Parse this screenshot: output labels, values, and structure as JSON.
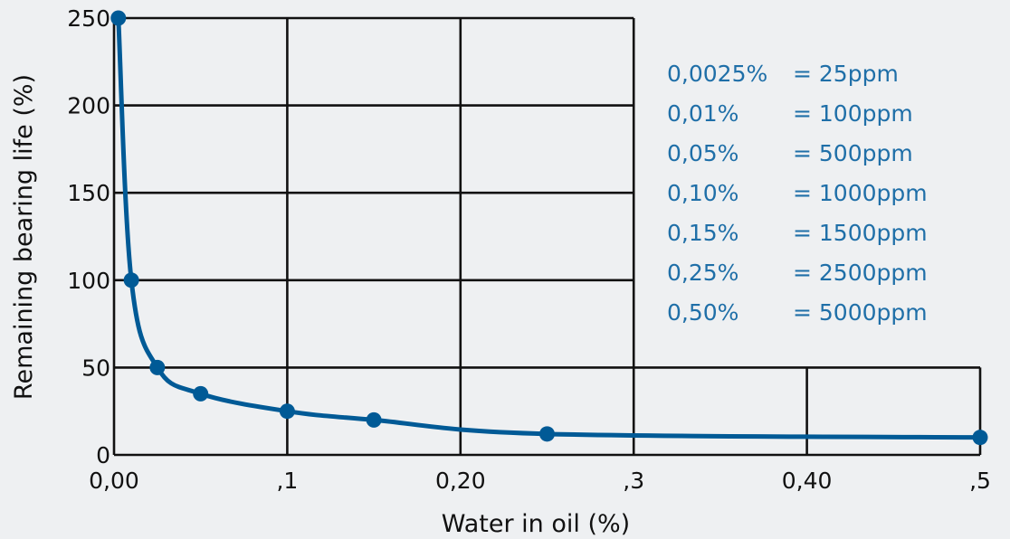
{
  "chart_data": {
    "type": "line",
    "title": "",
    "xlabel": "Water in oil (%)",
    "ylabel": "Remaining bearing life (%)",
    "xlim": [
      0,
      0.5
    ],
    "ylim": [
      0,
      250
    ],
    "x_ticks": [
      {
        "value": 0,
        "label": "0,00"
      },
      {
        "value": 0.1,
        "label": ",1"
      },
      {
        "value": 0.2,
        "label": "0,20"
      },
      {
        "value": 0.3,
        "label": ",3"
      },
      {
        "value": 0.4,
        "label": "0,40"
      },
      {
        "value": 0.5,
        "label": ",5"
      }
    ],
    "y_ticks": [
      {
        "value": 0,
        "label": "0"
      },
      {
        "value": 50,
        "label": "50"
      },
      {
        "value": 100,
        "label": "100"
      },
      {
        "value": 150,
        "label": "150"
      },
      {
        "value": 200,
        "label": "200"
      },
      {
        "value": 250,
        "label": "250"
      }
    ],
    "grid": true,
    "series": [
      {
        "color": "#005a96",
        "marker": "circle",
        "x": [
          0.0025,
          0.01,
          0.025,
          0.05,
          0.1,
          0.15,
          0.25,
          0.5
        ],
        "y": [
          250,
          100,
          50,
          35,
          25,
          20,
          12,
          10
        ]
      }
    ],
    "annotations": [
      {
        "percent": "0,0025%",
        "ppm": "= 25ppm"
      },
      {
        "percent": "0,01%",
        "ppm": "= 100ppm"
      },
      {
        "percent": "0,05%",
        "ppm": "= 500ppm"
      },
      {
        "percent": "0,10%",
        "ppm": "= 1000ppm"
      },
      {
        "percent": "0,15%",
        "ppm": "= 1500ppm"
      },
      {
        "percent": "0,25%",
        "ppm": "= 2500ppm"
      },
      {
        "percent": "0,50%",
        "ppm": "= 5000ppm"
      }
    ],
    "annotation_color": "#1f6fa8",
    "grid_color": "#111111",
    "background": "#eef0f2"
  }
}
